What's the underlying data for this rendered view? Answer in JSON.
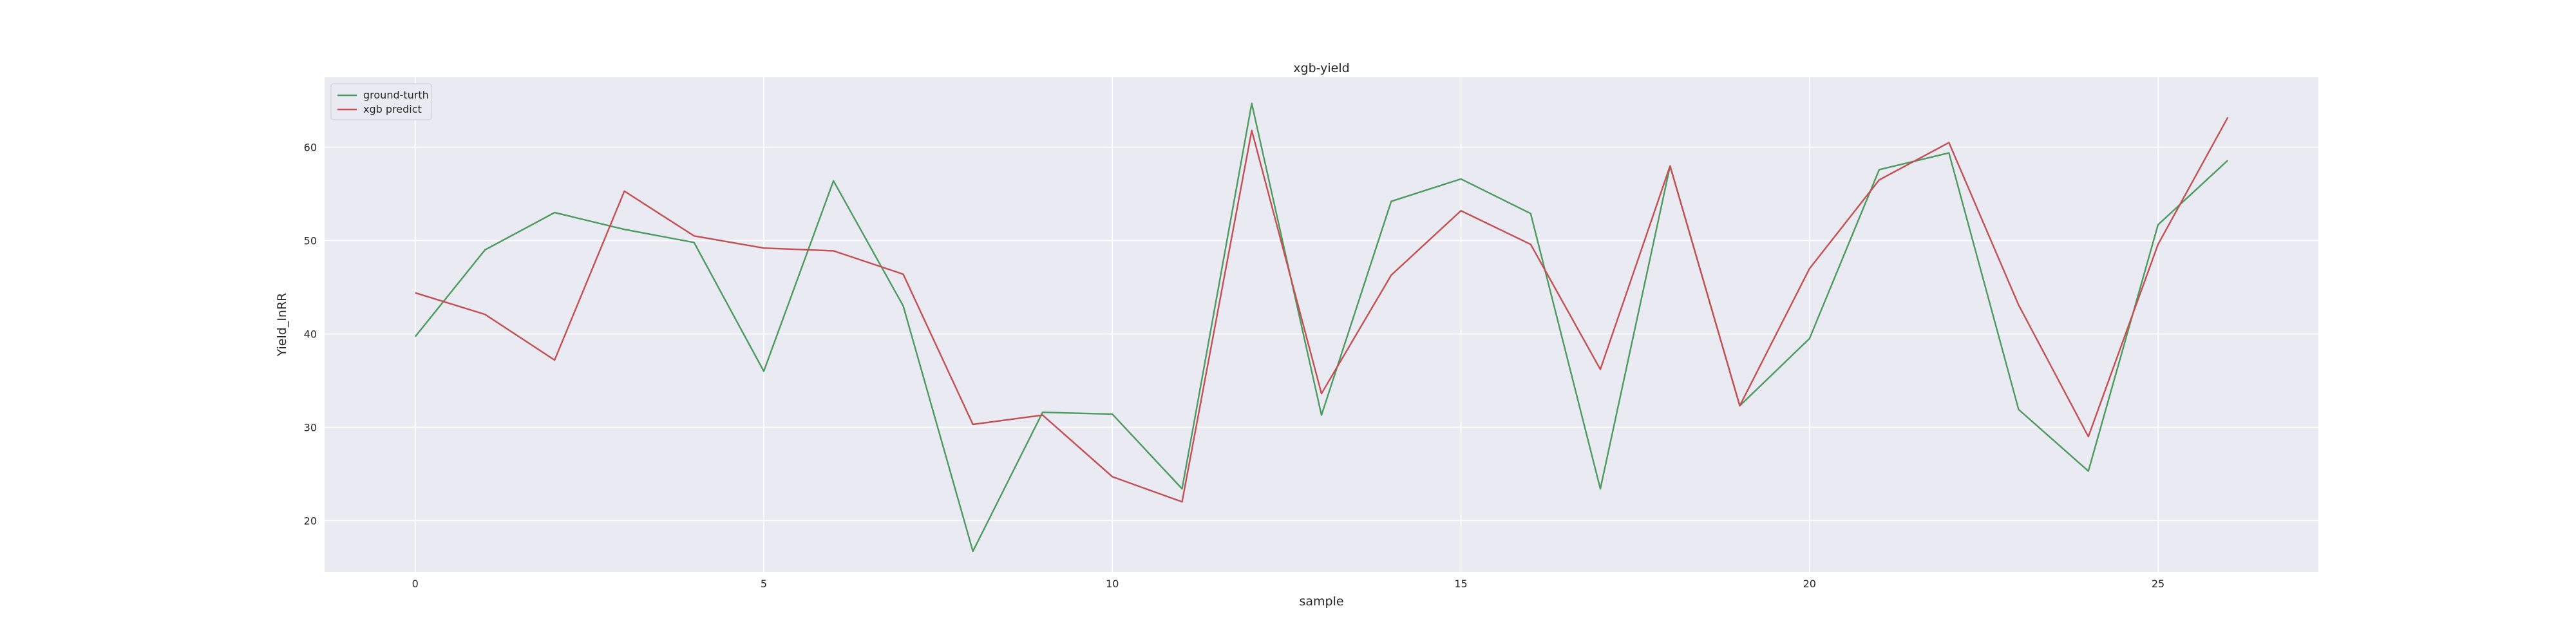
{
  "chart_data": {
    "type": "line",
    "title": "xgb-yield",
    "xlabel": "sample",
    "ylabel": "Yield_InRR",
    "x": [
      0,
      1,
      2,
      3,
      4,
      5,
      6,
      7,
      8,
      9,
      10,
      11,
      12,
      13,
      14,
      15,
      16,
      17,
      18,
      19,
      20,
      21,
      22,
      23,
      24,
      25,
      26
    ],
    "xlim": [
      -1.3,
      27.3
    ],
    "ylim": [
      14.5,
      67.5
    ],
    "xticks": [
      0,
      5,
      10,
      15,
      20,
      25
    ],
    "yticks": [
      20,
      30,
      40,
      50,
      60
    ],
    "grid": true,
    "legend_position": "upper-left",
    "background_color": "#EAEAF2",
    "grid_color": "#FFFFFF",
    "series": [
      {
        "name": "ground-turth",
        "color": "#4C9A5E",
        "values": [
          39.7,
          49.0,
          53.0,
          51.2,
          49.8,
          36.0,
          56.4,
          43.0,
          16.7,
          31.6,
          31.4,
          23.4,
          64.7,
          31.3,
          54.2,
          56.6,
          52.9,
          23.4,
          58.0,
          32.3,
          39.5,
          57.6,
          59.4,
          31.9,
          25.3,
          51.7,
          58.6
        ]
      },
      {
        "name": "xgb predict",
        "color": "#C44E52",
        "values": [
          44.4,
          42.1,
          37.2,
          55.3,
          50.5,
          49.2,
          48.9,
          46.4,
          30.3,
          31.3,
          24.7,
          22.0,
          61.8,
          33.6,
          46.3,
          53.2,
          49.6,
          36.2,
          58.0,
          32.3,
          47.0,
          56.5,
          60.5,
          43.1,
          29.0,
          49.6,
          63.2
        ]
      }
    ]
  }
}
